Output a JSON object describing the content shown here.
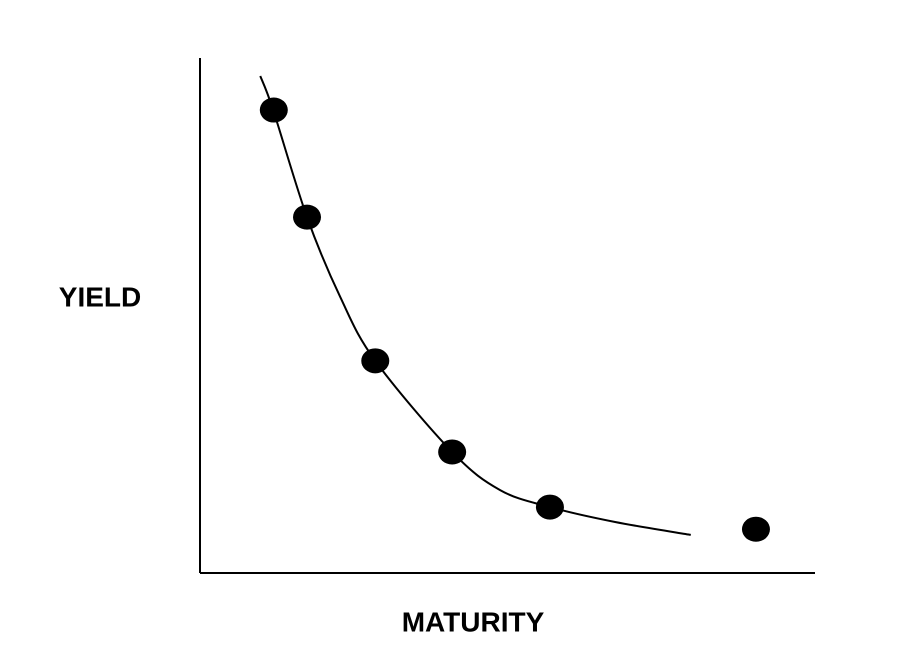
{
  "chart_data": {
    "type": "scatter",
    "x_label": "MATURITY",
    "y_label": "YIELD",
    "color": "#000000",
    "xlim": [
      0,
      100
    ],
    "ylim": [
      0,
      100
    ],
    "x": [
      12,
      17.4,
      28.5,
      41,
      56.9,
      90.4
    ],
    "values": [
      89.9,
      69.1,
      41.2,
      23.5,
      12.8,
      8.5
    ],
    "curve_x": [
      9.8,
      11.9,
      17.4,
      22.8,
      28.5,
      41,
      48.8,
      56.9,
      67.5,
      79.8
    ],
    "curve_values": [
      96.5,
      89.9,
      69.1,
      53.6,
      41.2,
      23.5,
      16.1,
      12.8,
      9.9,
      7.4
    ]
  }
}
